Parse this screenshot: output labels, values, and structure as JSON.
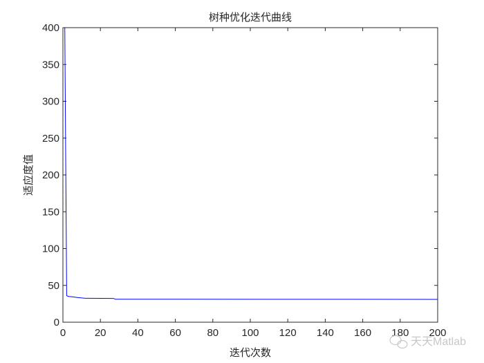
{
  "chart_data": {
    "type": "line",
    "title": "树种优化迭代曲线",
    "xlabel": "迭代次数",
    "ylabel": "适应度值",
    "xlim": [
      0,
      200
    ],
    "ylim": [
      0,
      400
    ],
    "xticks": [
      0,
      20,
      40,
      60,
      80,
      100,
      120,
      140,
      160,
      180,
      200
    ],
    "yticks": [
      0,
      50,
      100,
      150,
      200,
      250,
      300,
      350,
      400
    ],
    "grid": false,
    "series": [
      {
        "color": "#0000ff",
        "x": [
          1,
          2,
          3,
          5,
          8,
          12,
          27,
          28,
          200
        ],
        "y": [
          400,
          36,
          35,
          34.5,
          33.5,
          32.5,
          32.3,
          31.2,
          31
        ]
      }
    ]
  },
  "watermark": {
    "text": "天天Matlab",
    "icon": "wechat-icon"
  }
}
